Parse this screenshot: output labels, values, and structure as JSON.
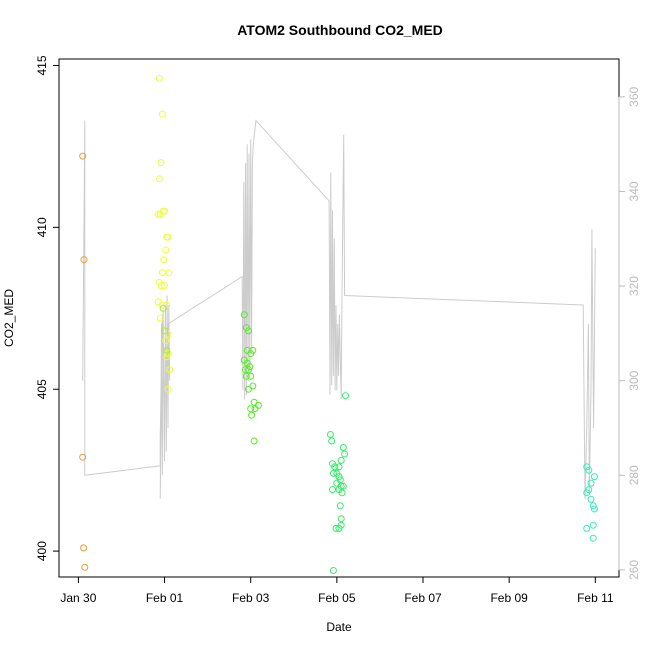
{
  "chart_data": {
    "type": "scatter",
    "title": "ATOM2 Southbound CO2_MED",
    "xlabel": "Date",
    "ylabel": "CO2_MED",
    "x_ticks": [
      "Jan 30",
      "Feb 01",
      "Feb 03",
      "Feb 05",
      "Feb 07",
      "Feb 09",
      "Feb 11"
    ],
    "x_tick_days": [
      0,
      2,
      4,
      6,
      8,
      10,
      12
    ],
    "xlim_days": [
      -0.45,
      12.55
    ],
    "ylim": [
      399.2,
      415.2
    ],
    "y_ticks": [
      400,
      405,
      410,
      415
    ],
    "y2_ticks": [
      260,
      280,
      300,
      320,
      340,
      360
    ],
    "y2lim": [
      258.5,
      368
    ],
    "grid": false,
    "colors": {
      "orange": "#ee9933",
      "yellow": "#eeff33",
      "yellowgreen": "#aaee22",
      "green": "#55ee22",
      "green2": "#33ee66",
      "cyan": "#33eebb",
      "line": "#cccccc",
      "axis": "#000000",
      "axis2": "#bbbbbb"
    },
    "series": [
      {
        "color": "orange",
        "points": [
          [
            0.1,
            412.2
          ],
          [
            0.13,
            409.0
          ],
          [
            0.1,
            402.9
          ],
          [
            0.12,
            400.1
          ],
          [
            0.15,
            399.5
          ]
        ]
      },
      {
        "color": "yellow",
        "points": [
          [
            1.88,
            414.6
          ],
          [
            1.95,
            413.5
          ],
          [
            1.92,
            412.0
          ],
          [
            1.88,
            411.5
          ],
          [
            1.85,
            410.4
          ],
          [
            1.9,
            410.4
          ],
          [
            1.97,
            410.5
          ],
          [
            2.0,
            410.5
          ],
          [
            2.05,
            409.7
          ],
          [
            2.08,
            409.7
          ],
          [
            2.03,
            409.3
          ],
          [
            1.98,
            409.0
          ],
          [
            1.95,
            408.6
          ],
          [
            2.1,
            408.6
          ],
          [
            1.88,
            408.3
          ],
          [
            1.92,
            408.2
          ],
          [
            2.0,
            408.2
          ],
          [
            1.85,
            407.7
          ],
          [
            1.95,
            407.6
          ],
          [
            2.05,
            407.6
          ],
          [
            1.9,
            407.2
          ],
          [
            2.08,
            406.7
          ],
          [
            2.03,
            406.5
          ],
          [
            2.08,
            406.1
          ],
          [
            2.05,
            406.0
          ],
          [
            2.12,
            405.6
          ],
          [
            2.08,
            405.0
          ]
        ]
      },
      {
        "color": "yellowgreen",
        "points": [
          [
            1.97,
            407.5
          ],
          [
            2.0,
            406.8
          ],
          [
            2.05,
            406.2
          ]
        ]
      },
      {
        "color": "green",
        "points": [
          [
            3.85,
            407.3
          ],
          [
            3.9,
            406.9
          ],
          [
            3.95,
            406.8
          ],
          [
            3.92,
            406.2
          ],
          [
            4.05,
            406.2
          ],
          [
            4.0,
            406.1
          ],
          [
            3.85,
            405.9
          ],
          [
            3.92,
            405.8
          ],
          [
            3.98,
            405.7
          ],
          [
            3.88,
            405.6
          ],
          [
            3.95,
            405.6
          ],
          [
            4.0,
            405.4
          ],
          [
            3.9,
            405.4
          ],
          [
            4.05,
            405.1
          ],
          [
            3.95,
            405.0
          ],
          [
            4.08,
            404.6
          ],
          [
            4.0,
            404.4
          ],
          [
            4.1,
            404.4
          ],
          [
            4.02,
            404.2
          ],
          [
            4.18,
            404.5
          ],
          [
            4.08,
            403.4
          ]
        ]
      },
      {
        "color": "green2",
        "points": [
          [
            5.85,
            403.6
          ],
          [
            5.88,
            403.4
          ],
          [
            5.9,
            402.7
          ],
          [
            5.95,
            402.6
          ],
          [
            6.05,
            402.6
          ],
          [
            6.15,
            403.2
          ],
          [
            6.18,
            403.0
          ],
          [
            6.1,
            402.8
          ],
          [
            5.92,
            402.4
          ],
          [
            6.0,
            402.4
          ],
          [
            6.05,
            402.3
          ],
          [
            6.08,
            402.2
          ],
          [
            6.0,
            402.1
          ],
          [
            6.1,
            402.0
          ],
          [
            6.15,
            402.0
          ],
          [
            5.9,
            401.9
          ],
          [
            6.05,
            401.9
          ],
          [
            6.12,
            401.8
          ],
          [
            6.08,
            401.4
          ],
          [
            6.1,
            401.0
          ],
          [
            6.1,
            400.8
          ],
          [
            6.05,
            400.7
          ],
          [
            5.98,
            400.7
          ],
          [
            5.92,
            399.4
          ],
          [
            6.2,
            404.8
          ]
        ]
      },
      {
        "color": "cyan",
        "points": [
          [
            11.8,
            402.6
          ],
          [
            11.85,
            402.5
          ],
          [
            11.98,
            402.3
          ],
          [
            11.9,
            402.1
          ],
          [
            11.85,
            401.9
          ],
          [
            11.8,
            401.8
          ],
          [
            11.9,
            401.6
          ],
          [
            11.95,
            401.4
          ],
          [
            11.98,
            401.3
          ],
          [
            11.8,
            400.7
          ],
          [
            11.95,
            400.8
          ],
          [
            11.95,
            400.4
          ]
        ]
      }
    ],
    "line_y2": [
      [
        0.1,
        300
      ],
      [
        0.15,
        355
      ],
      [
        0.15,
        280
      ],
      [
        1.9,
        282
      ],
      [
        1.9,
        288
      ],
      [
        1.95,
        314
      ],
      [
        1.9,
        275
      ],
      [
        1.93,
        312
      ],
      [
        1.95,
        280
      ],
      [
        1.97,
        315
      ],
      [
        2.0,
        283
      ],
      [
        2.02,
        316
      ],
      [
        2.04,
        285
      ],
      [
        2.06,
        318
      ],
      [
        2.08,
        290
      ],
      [
        2.1,
        316
      ],
      [
        2.12,
        300
      ],
      [
        2.08,
        312
      ],
      [
        3.8,
        322
      ],
      [
        3.82,
        298
      ],
      [
        3.84,
        342
      ],
      [
        3.86,
        296
      ],
      [
        3.88,
        346
      ],
      [
        3.9,
        297
      ],
      [
        3.92,
        350
      ],
      [
        3.94,
        300
      ],
      [
        3.96,
        348
      ],
      [
        3.98,
        302
      ],
      [
        4.0,
        351
      ],
      [
        4.02,
        306
      ],
      [
        4.04,
        346
      ],
      [
        4.06,
        350
      ],
      [
        4.12,
        355
      ],
      [
        5.82,
        338
      ],
      [
        5.84,
        297
      ],
      [
        5.86,
        344
      ],
      [
        5.88,
        299
      ],
      [
        5.9,
        336
      ],
      [
        5.92,
        301
      ],
      [
        5.94,
        330
      ],
      [
        5.96,
        298
      ],
      [
        5.98,
        316
      ],
      [
        6.0,
        298
      ],
      [
        6.02,
        312
      ],
      [
        6.04,
        301
      ],
      [
        6.06,
        314
      ],
      [
        6.1,
        296
      ],
      [
        6.12,
        318
      ],
      [
        6.16,
        352
      ],
      [
        6.18,
        318
      ],
      [
        11.72,
        316
      ],
      [
        11.76,
        275
      ],
      [
        11.8,
        290
      ],
      [
        11.84,
        312
      ],
      [
        11.86,
        276
      ],
      [
        11.9,
        298
      ],
      [
        11.92,
        332
      ],
      [
        11.96,
        290
      ],
      [
        12.0,
        328
      ]
    ]
  }
}
